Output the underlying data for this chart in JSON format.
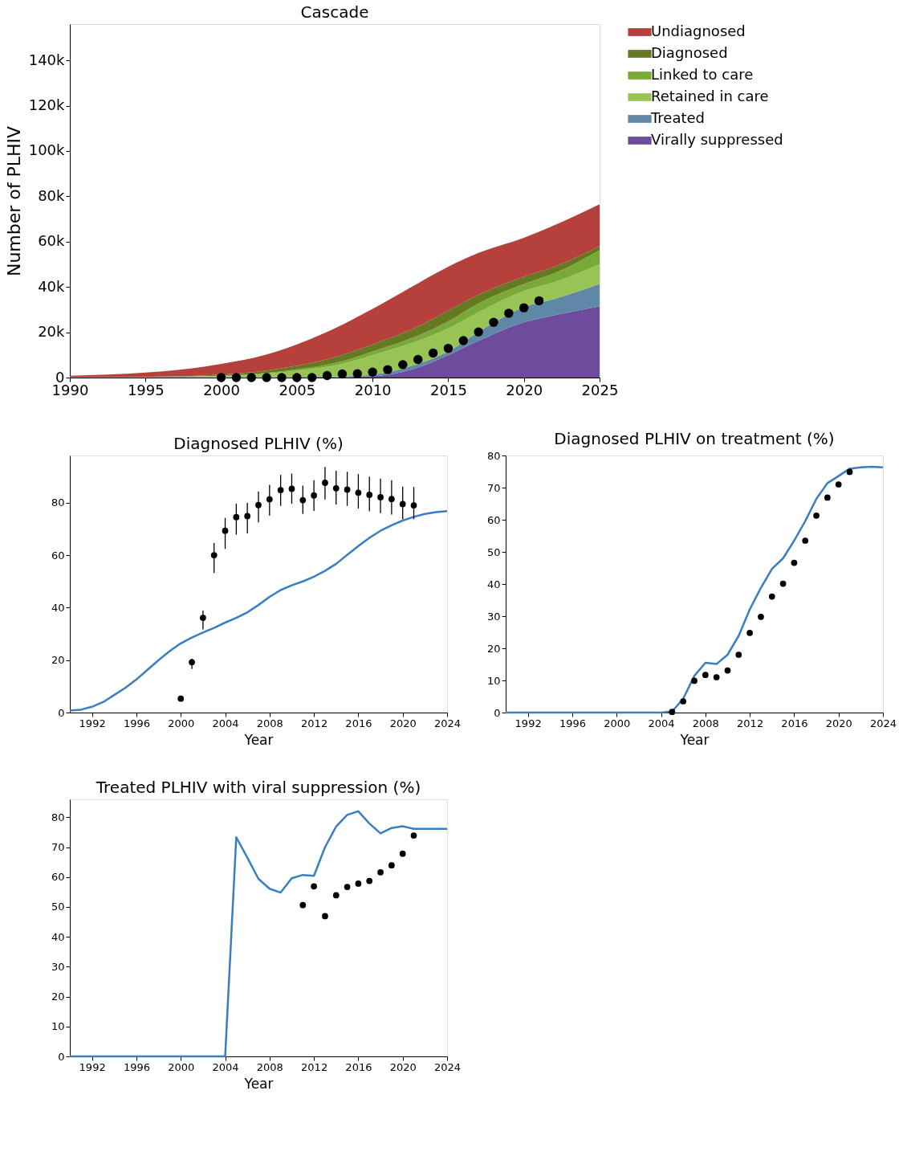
{
  "chart_data": [
    {
      "type": "area",
      "title": "Cascade",
      "ylabel": "Number of PLHIV",
      "stacked": true,
      "legend": "top right",
      "x": [
        1990,
        1995,
        2000,
        2003,
        2005,
        2008,
        2010,
        2013,
        2015,
        2017,
        2020,
        2022,
        2025
      ],
      "xlim": [
        1990,
        2025
      ],
      "xticks": [
        1990,
        1995,
        2000,
        2005,
        2010,
        2015,
        2020,
        2025
      ],
      "ylim": [
        0,
        156000
      ],
      "yticks": [
        {
          "value": 0,
          "label": "0"
        },
        {
          "value": 20000,
          "label": "20k"
        },
        {
          "value": 40000,
          "label": "40k"
        },
        {
          "value": 60000,
          "label": "60k"
        },
        {
          "value": 80000,
          "label": "80k"
        },
        {
          "value": 100000,
          "label": "100k"
        },
        {
          "value": 120000,
          "label": "120k"
        },
        {
          "value": 140000,
          "label": "140k"
        }
      ],
      "series": [
        {
          "name": "Virally suppressed",
          "color": "#6e4b9d",
          "values": [
            0,
            0,
            0,
            0,
            0,
            200,
            500,
            4400,
            9900,
            16200,
            24400,
            27500,
            31400
          ]
        },
        {
          "name": "Treated",
          "color": "#5f87a6",
          "values": [
            0,
            0,
            100,
            100,
            200,
            300,
            800,
            1600,
            1600,
            3900,
            6700,
            7200,
            9900
          ]
        },
        {
          "name": "Retained in care",
          "color": "#98c355",
          "values": [
            100,
            200,
            600,
            1600,
            2800,
            5500,
            8600,
            10200,
            10200,
            8700,
            7100,
            7400,
            8700
          ]
        },
        {
          "name": "Linked to care",
          "color": "#79aa37",
          "values": [
            0,
            0,
            100,
            300,
            600,
            1200,
            1600,
            2300,
            3100,
            3900,
            3100,
            3900,
            6200
          ]
        },
        {
          "name": "Diagnosed",
          "color": "#647a22",
          "values": [
            100,
            100,
            500,
            1100,
            1600,
            2700,
            3100,
            4000,
            4700,
            3900,
            3200,
            2900,
            1900
          ]
        },
        {
          "name": "Undiagnosed",
          "color": "#b5403c",
          "values": [
            600,
            1900,
            4700,
            7100,
            9400,
            13400,
            15700,
            19100,
            19400,
            18400,
            17200,
            18300,
            18400
          ]
        },
        {
          "type": "scatter",
          "color": "#000000",
          "x": [
            2000,
            2001,
            2002,
            2003,
            2004,
            2005,
            2006,
            2007,
            2008,
            2009,
            2010,
            2011,
            2012,
            2013,
            2014,
            2015,
            2016,
            2017,
            2018,
            2019,
            2020,
            2021
          ],
          "values": [
            0,
            0,
            0,
            0,
            0,
            0,
            0,
            900,
            1600,
            1700,
            2400,
            3500,
            5700,
            8000,
            10800,
            12900,
            16300,
            20100,
            24400,
            28400,
            30800,
            33900
          ]
        }
      ]
    },
    {
      "type": "line",
      "title": "Diagnosed PLHIV (%)",
      "xlabel": "Year",
      "xlim": [
        1990,
        2024
      ],
      "xticks": [
        1992,
        1996,
        2000,
        2004,
        2008,
        2012,
        2016,
        2020,
        2024
      ],
      "ylim": [
        0,
        98
      ],
      "yticks": [
        0,
        20,
        40,
        60,
        80
      ],
      "series": [
        {
          "color": "#3a7ebf",
          "x": [
            1990,
            1991,
            1992,
            1993,
            1994,
            1995,
            1996,
            1997,
            1998,
            1999,
            2000,
            2001,
            2002,
            2003,
            2004,
            2005,
            2006,
            2007,
            2008,
            2009,
            2010,
            2011,
            2012,
            2013,
            2014,
            2015,
            2016,
            2017,
            2018,
            2019,
            2020,
            2021,
            2022,
            2023,
            2024
          ],
          "values": [
            0.8,
            1.1,
            2.2,
            4.0,
            6.7,
            9.4,
            12.6,
            16.3,
            20.0,
            23.4,
            26.4,
            28.6,
            30.5,
            32.3,
            34.3,
            36.1,
            38.2,
            41.0,
            44.1,
            46.7,
            48.5,
            50.0,
            51.8,
            54.0,
            56.7,
            60.1,
            63.5,
            66.6,
            69.3,
            71.4,
            73.2,
            74.6,
            75.7,
            76.4,
            76.8
          ]
        },
        {
          "type": "scatter",
          "color": "#000000",
          "x": [
            2000,
            2001,
            2002,
            2003,
            2004,
            2005,
            2006,
            2007,
            2008,
            2009,
            2010,
            2011,
            2012,
            2013,
            2014,
            2015,
            2016,
            2017,
            2018,
            2019,
            2020,
            2021
          ],
          "values": [
            5.3,
            19.2,
            36.1,
            60.0,
            69.3,
            74.5,
            74.9,
            79.1,
            81.3,
            84.8,
            85.3,
            81.0,
            82.8,
            87.6,
            85.5,
            85.0,
            83.8,
            83.0,
            82.1,
            81.4,
            79.5,
            79.0
          ],
          "errors": [
            null,
            [
              16.6,
              20.5
            ],
            [
              31.7,
              38.9
            ],
            [
              53.2,
              64.6
            ],
            [
              62.4,
              74.2
            ],
            [
              67.8,
              79.6
            ],
            [
              68.3,
              79.9
            ],
            [
              72.5,
              84.3
            ],
            [
              75.1,
              86.8
            ],
            [
              78.8,
              90.6
            ],
            [
              79.6,
              91.1
            ],
            [
              75.7,
              86.5
            ],
            [
              76.9,
              88.6
            ],
            [
              81.2,
              93.6
            ],
            [
              79.3,
              92.2
            ],
            [
              78.8,
              91.8
            ],
            [
              77.8,
              90.9
            ],
            [
              76.7,
              89.9
            ],
            [
              76.0,
              89.2
            ],
            [
              75.5,
              88.6
            ],
            [
              73.7,
              86.1
            ],
            [
              73.7,
              86.0
            ]
          ]
        }
      ]
    },
    {
      "type": "line",
      "title": "Diagnosed PLHIV on treatment (%)",
      "xlabel": "Year",
      "xlim": [
        1990,
        2024
      ],
      "xticks": [
        1992,
        1996,
        2000,
        2004,
        2008,
        2012,
        2016,
        2020,
        2024
      ],
      "ylim": [
        0,
        80
      ],
      "yticks": [
        0,
        10,
        20,
        30,
        40,
        50,
        60,
        70,
        80
      ],
      "series": [
        {
          "color": "#3a7ebf",
          "x": [
            1990,
            1991,
            1992,
            1993,
            1994,
            1995,
            1996,
            1997,
            1998,
            1999,
            2000,
            2001,
            2002,
            2003,
            2004,
            2005,
            2006,
            2007,
            2008,
            2009,
            2010,
            2011,
            2012,
            2013,
            2014,
            2015,
            2016,
            2017,
            2018,
            2019,
            2020,
            2021,
            2022,
            2023,
            2024
          ],
          "values": [
            0,
            0,
            0,
            0,
            0,
            0,
            0,
            0,
            0,
            0,
            0,
            0,
            0,
            0,
            0,
            0.3,
            4.3,
            11.4,
            15.5,
            15.1,
            18.0,
            23.9,
            32.1,
            38.8,
            44.7,
            48.0,
            53.5,
            59.6,
            66.5,
            71.4,
            73.6,
            75.9,
            76.3,
            76.5,
            76.3
          ]
        },
        {
          "type": "scatter",
          "color": "#000000",
          "x": [
            2005,
            2006,
            2007,
            2008,
            2009,
            2010,
            2011,
            2012,
            2013,
            2014,
            2015,
            2016,
            2017,
            2018,
            2019,
            2020,
            2021
          ],
          "values": [
            0.2,
            3.5,
            9.9,
            11.7,
            11.0,
            13.1,
            18.0,
            24.8,
            29.8,
            36.1,
            40.1,
            46.6,
            53.5,
            61.3,
            66.9,
            71.0,
            74.9
          ]
        }
      ]
    },
    {
      "type": "line",
      "title": "Treated PLHIV with viral suppression (%)",
      "xlabel": "Year",
      "xlim": [
        1990,
        2024
      ],
      "xticks": [
        1992,
        1996,
        2000,
        2004,
        2008,
        2012,
        2016,
        2020,
        2024
      ],
      "ylim": [
        0,
        86
      ],
      "yticks": [
        0,
        10,
        20,
        30,
        40,
        50,
        60,
        70,
        80
      ],
      "series": [
        {
          "color": "#3a7ebf",
          "x": [
            1990,
            1991,
            1992,
            1993,
            1994,
            1995,
            1996,
            1997,
            1998,
            1999,
            2000,
            2001,
            2002,
            2003,
            2004,
            2005,
            2006,
            2007,
            2008,
            2009,
            2010,
            2011,
            2012,
            2013,
            2014,
            2015,
            2016,
            2017,
            2018,
            2019,
            2020,
            2021,
            2022,
            2023,
            2024
          ],
          "values": [
            0,
            0,
            0,
            0,
            0,
            0,
            0,
            0,
            0,
            0,
            0,
            0,
            0,
            0,
            0,
            73.3,
            66.5,
            59.4,
            56.1,
            54.8,
            59.6,
            60.7,
            60.4,
            70.0,
            76.9,
            80.8,
            82.0,
            77.9,
            74.6,
            76.4,
            77.0,
            76.1,
            76.1,
            76.1,
            76.1
          ]
        },
        {
          "type": "scatter",
          "color": "#000000",
          "x": [
            2011,
            2012,
            2013,
            2014,
            2015,
            2016,
            2017,
            2018,
            2019,
            2020,
            2021
          ],
          "values": [
            50.6,
            56.9,
            46.9,
            53.9,
            56.7,
            57.8,
            58.7,
            61.6,
            63.9,
            67.8,
            73.9
          ]
        }
      ]
    }
  ]
}
